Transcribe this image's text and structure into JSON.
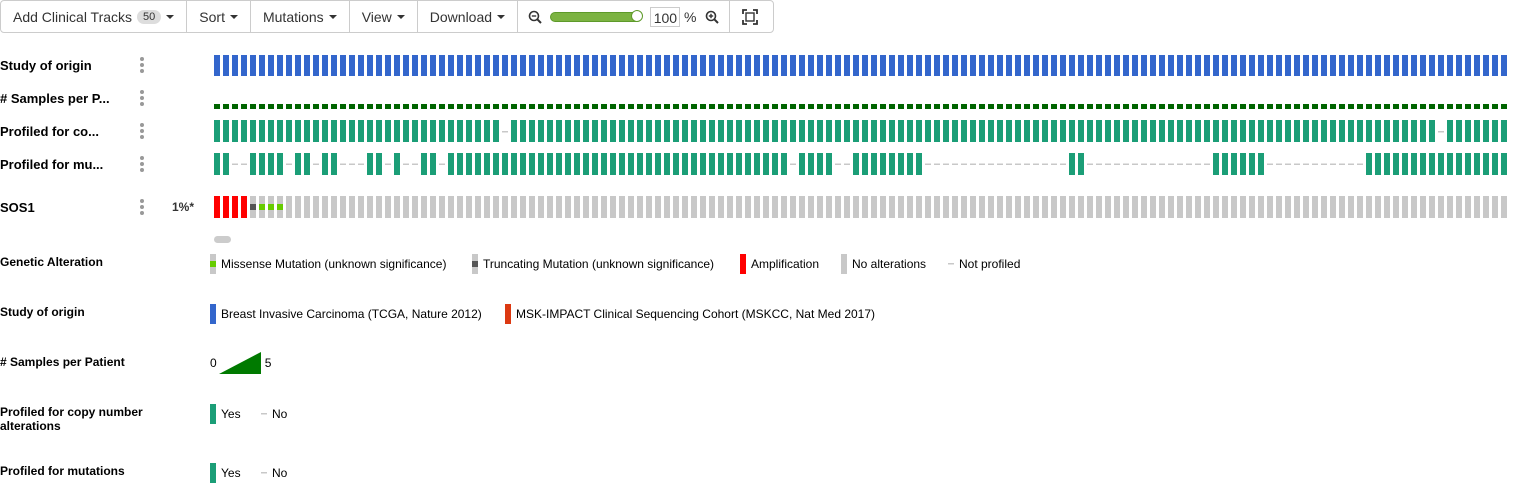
{
  "toolbar": {
    "add_tracks_label": "Add Clinical Tracks",
    "add_tracks_count": "50",
    "sort_label": "Sort",
    "mutations_label": "Mutations",
    "view_label": "View",
    "download_label": "Download",
    "zoom_value": "100",
    "zoom_unit": "%",
    "zoom_level": 1.0
  },
  "tracks": {
    "study_of_origin": "Study of origin",
    "samples_per_patient": "# Samples per P...",
    "profiled_cna": "Profiled for co...",
    "profiled_mut": "Profiled for mu...",
    "gene": "SOS1",
    "gene_pct": "1%*"
  },
  "legends": {
    "genetic_alteration": {
      "title": "Genetic Alteration",
      "items": [
        "Missense Mutation (unknown significance)",
        "Truncating Mutation (unknown significance)",
        "Amplification",
        "No alterations",
        "Not profiled"
      ]
    },
    "study_of_origin": {
      "title": "Study of origin",
      "items": [
        "Breast Invasive Carcinoma (TCGA, Nature 2012)",
        "MSK-IMPACT Clinical Sequencing Cohort (MSKCC, Nat Med 2017)"
      ]
    },
    "samples_per_patient": {
      "title": "# Samples per Patient",
      "min": "0",
      "max": "5"
    },
    "profiled_cna": {
      "title": "Profiled for copy number alterations",
      "yes": "Yes",
      "no": "No"
    },
    "profiled_mut": {
      "title": "Profiled for mutations",
      "yes": "Yes",
      "no": "No"
    }
  },
  "colors": {
    "study_blue": "#3366cc",
    "study_orange": "#dc3912",
    "samples_green": "#006400",
    "profiled_teal": "#1b9e77",
    "amplification": "#ff0000",
    "missense": "#66cc00",
    "truncating": "#555555",
    "no_alteration": "#c8c8c8",
    "not_profiled": "#c8c8c8"
  }
}
